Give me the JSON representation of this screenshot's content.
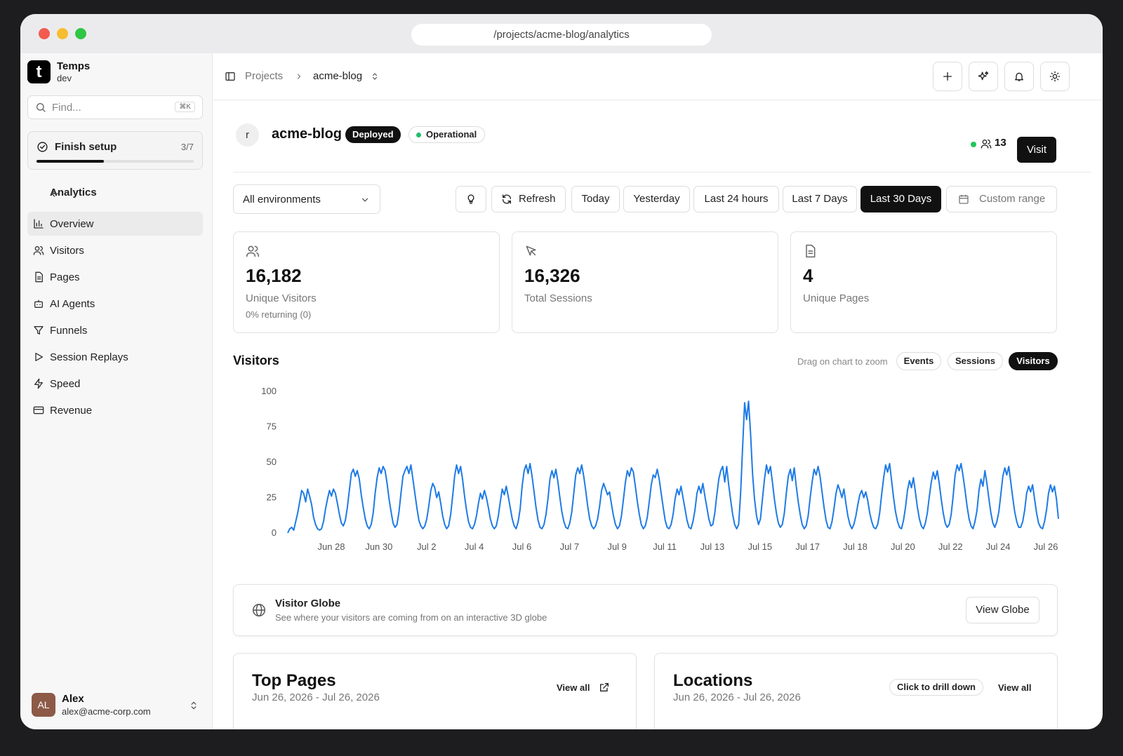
{
  "browser": {
    "url": "/projects/acme-blog/analytics"
  },
  "sidebar": {
    "brand": {
      "logo_letter": "t",
      "name": "Temps",
      "env": "dev"
    },
    "search": {
      "placeholder": "Find...",
      "shortcut": "⌘K"
    },
    "setup": {
      "label": "Finish setup",
      "count": "3/7",
      "progress": 0.43
    },
    "section": "Analytics",
    "items": [
      {
        "label": "Overview",
        "icon": "bar-chart-icon",
        "active": true
      },
      {
        "label": "Visitors",
        "icon": "users-icon"
      },
      {
        "label": "Pages",
        "icon": "file-icon"
      },
      {
        "label": "AI Agents",
        "icon": "bot-icon"
      },
      {
        "label": "Funnels",
        "icon": "funnel-icon"
      },
      {
        "label": "Session Replays",
        "icon": "play-icon"
      },
      {
        "label": "Speed",
        "icon": "zap-icon"
      },
      {
        "label": "Revenue",
        "icon": "credit-card-icon"
      }
    ],
    "user": {
      "initials": "AL",
      "name": "Alex",
      "email": "alex@acme-corp.com"
    }
  },
  "topbar": {
    "crumb_root": "Projects",
    "crumb_project": "acme-blog"
  },
  "project": {
    "avatar": "r",
    "name": "acme-blog",
    "badge": "Deployed",
    "status": "Operational",
    "live_visitors": "13",
    "visit_label": "Visit"
  },
  "filters": {
    "environment": "All environments",
    "refresh": "Refresh",
    "ranges": [
      "Today",
      "Yesterday",
      "Last 24 hours",
      "Last 7 Days",
      "Last 30 Days"
    ],
    "selected_range": "Last 30 Days",
    "custom": "Custom range"
  },
  "stats": [
    {
      "value": "16,182",
      "label": "Unique Visitors",
      "sub": "0% returning (0)",
      "icon": "users-icon"
    },
    {
      "value": "16,326",
      "label": "Total Sessions",
      "sub": "",
      "icon": "pointer-icon"
    },
    {
      "value": "4",
      "label": "Unique Pages",
      "sub": "",
      "icon": "file-icon"
    }
  ],
  "chart_section": {
    "title": "Visitors",
    "hint": "Drag on chart to zoom",
    "toggles": [
      "Events",
      "Sessions",
      "Visitors"
    ],
    "selected_toggle": "Visitors"
  },
  "chart_data": {
    "type": "line",
    "title": "",
    "xlabel": "",
    "ylabel": "",
    "ylim": [
      0,
      100
    ],
    "yticks": [
      0,
      25,
      50,
      75,
      100
    ],
    "x_ticks": [
      "Jun 28",
      "Jun 30",
      "Jul 2",
      "Jul 4",
      "Jul 6",
      "Jul 7",
      "Jul 9",
      "Jul 11",
      "Jul 13",
      "Jul 15",
      "Jul 17",
      "Jul 18",
      "Jul 20",
      "Jul 22",
      "Jul 24",
      "Jul 26"
    ],
    "color": "#1e7be6",
    "series": [
      {
        "values": [
          0,
          3,
          4,
          2,
          8,
          14,
          22,
          30,
          28,
          22,
          31,
          26,
          20,
          11,
          6,
          3,
          2,
          3,
          8,
          17,
          24,
          30,
          26,
          31,
          28,
          21,
          13,
          7,
          5,
          9,
          18,
          30,
          42,
          45,
          40,
          44,
          38,
          27,
          18,
          10,
          5,
          3,
          6,
          14,
          28,
          39,
          46,
          42,
          47,
          44,
          35,
          24,
          15,
          7,
          4,
          6,
          15,
          28,
          40,
          44,
          47,
          42,
          48,
          38,
          28,
          18,
          9,
          5,
          3,
          5,
          10,
          19,
          30,
          35,
          32,
          25,
          29,
          21,
          12,
          6,
          3,
          5,
          13,
          26,
          40,
          48,
          42,
          47,
          38,
          26,
          16,
          8,
          4,
          3,
          6,
          12,
          21,
          28,
          24,
          30,
          25,
          18,
          10,
          5,
          3,
          5,
          12,
          22,
          31,
          27,
          33,
          26,
          18,
          10,
          5,
          3,
          8,
          17,
          33,
          44,
          48,
          42,
          49,
          40,
          29,
          18,
          9,
          4,
          3,
          6,
          13,
          24,
          38,
          44,
          39,
          45,
          36,
          25,
          15,
          8,
          4,
          3,
          7,
          15,
          28,
          41,
          46,
          42,
          48,
          40,
          30,
          19,
          10,
          5,
          3,
          5,
          10,
          19,
          30,
          35,
          31,
          27,
          29,
          20,
          12,
          6,
          3,
          5,
          12,
          24,
          36,
          44,
          40,
          46,
          43,
          33,
          22,
          13,
          6,
          3,
          5,
          11,
          22,
          34,
          41,
          39,
          45,
          38,
          28,
          18,
          9,
          4,
          3,
          6,
          13,
          24,
          31,
          27,
          33,
          25,
          17,
          9,
          4,
          3,
          8,
          16,
          28,
          33,
          28,
          35,
          26,
          18,
          10,
          5,
          6,
          14,
          27,
          38,
          44,
          47,
          36,
          47,
          34,
          23,
          13,
          6,
          3,
          6,
          28,
          60,
          92,
          80,
          93,
          70,
          42,
          24,
          12,
          6,
          10,
          24,
          38,
          48,
          42,
          47,
          36,
          24,
          14,
          7,
          4,
          6,
          14,
          28,
          40,
          45,
          37,
          46,
          33,
          22,
          13,
          6,
          3,
          5,
          12,
          25,
          36,
          45,
          41,
          47,
          40,
          29,
          18,
          9,
          4,
          3,
          8,
          17,
          28,
          34,
          30,
          25,
          31,
          21,
          12,
          6,
          3,
          6,
          12,
          20,
          27,
          30,
          25,
          29,
          23,
          14,
          8,
          4,
          3,
          6,
          14,
          27,
          39,
          48,
          43,
          49,
          37,
          25,
          15,
          8,
          4,
          3,
          9,
          18,
          30,
          37,
          32,
          39,
          29,
          18,
          10,
          5,
          3,
          7,
          14,
          26,
          36,
          43,
          38,
          44,
          35,
          24,
          14,
          7,
          4,
          6,
          13,
          26,
          41,
          48,
          44,
          49,
          40,
          30,
          19,
          10,
          5,
          3,
          8,
          16,
          30,
          38,
          33,
          44,
          35,
          24,
          14,
          7,
          4,
          8,
          15,
          27,
          40,
          46,
          41,
          47,
          36,
          25,
          15,
          8,
          4,
          4,
          8,
          16,
          28,
          33,
          29,
          34,
          24,
          14,
          7,
          4,
          3,
          8,
          16,
          28,
          34,
          29,
          33,
          24,
          10
        ]
      }
    ]
  },
  "globe": {
    "title": "Visitor Globe",
    "subtitle": "See where your visitors are coming from on an interactive 3D globe",
    "button": "View Globe"
  },
  "top_pages": {
    "title": "Top Pages",
    "dates": "Jun 26, 2026 - Jul 26, 2026",
    "view_all": "View all"
  },
  "locations": {
    "title": "Locations",
    "dates": "Jun 26, 2026 - Jul 26, 2026",
    "drill": "Click to drill down",
    "view_all": "View all"
  }
}
